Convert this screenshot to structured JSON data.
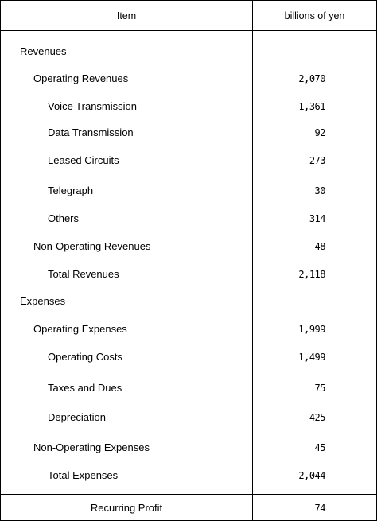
{
  "header": {
    "item": "Item",
    "unit": "billions of yen"
  },
  "rows": [
    {
      "label": "Revenues",
      "value": "",
      "level": 0
    },
    {
      "label": "Operating Revenues",
      "value": "2,070",
      "level": 1
    },
    {
      "label": "Voice Transmission",
      "value": "1,361",
      "level": 2
    },
    {
      "label": "Data Transmission",
      "value": "92",
      "level": 2
    },
    {
      "label": "Leased Circuits",
      "value": "273",
      "level": 2
    },
    {
      "label": "Telegraph",
      "value": "30",
      "level": 2
    },
    {
      "label": "Others",
      "value": "314",
      "level": 2
    },
    {
      "label": "Non-Operating Revenues",
      "value": "48",
      "level": 1
    },
    {
      "label": "Total Revenues",
      "value": "2,118",
      "level": 2
    },
    {
      "label": "Expenses",
      "value": "",
      "level": 0
    },
    {
      "label": "Operating Expenses",
      "value": "1,999",
      "level": 1
    },
    {
      "label": "Operating Costs",
      "value": "1,499",
      "level": 2
    },
    {
      "label": "Taxes and Dues",
      "value": "75",
      "level": 2
    },
    {
      "label": "Depreciation",
      "value": "425",
      "level": 2
    },
    {
      "label": "Non-Operating Expenses",
      "value": "45",
      "level": 1
    },
    {
      "label": "Total Expenses",
      "value": "2,044",
      "level": 2
    }
  ],
  "footer": {
    "label": "Recurring Profit",
    "value": "74"
  }
}
